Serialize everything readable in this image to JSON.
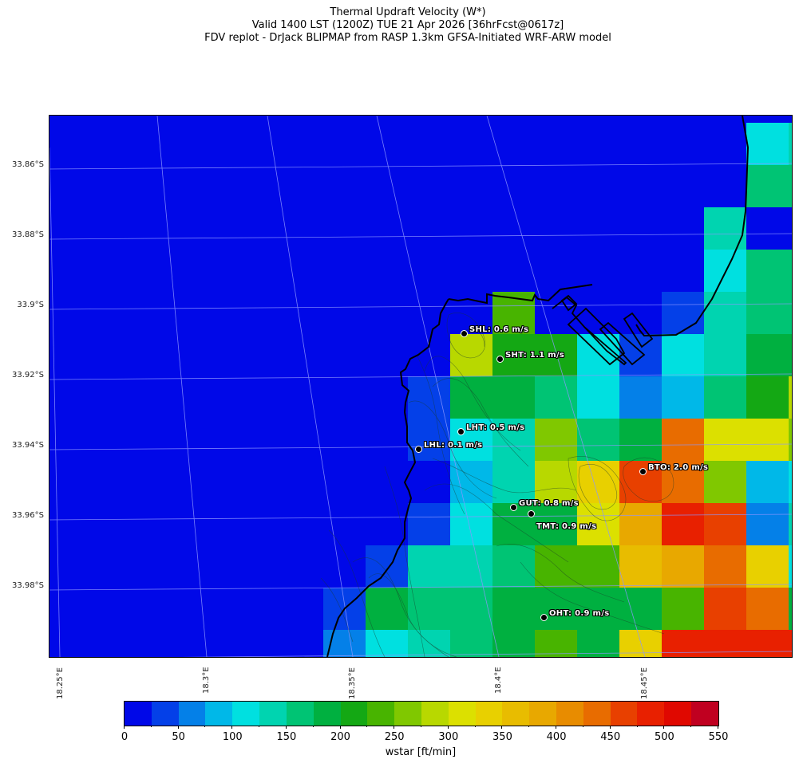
{
  "title": {
    "line1": "Thermal Updraft Velocity (W*)",
    "line2": "Valid 1400 LST (1200Z) TUE 21 Apr 2026 [36hrFcst@0617z]",
    "line3": "FDV replot - DrJack BLIPMAP from RASP 1.3km GFSA-Initiated WRF-ARW model"
  },
  "axes": {
    "lat_labels": [
      "33.86°S",
      "33.88°S",
      "33.9°S",
      "33.92°S",
      "33.94°S",
      "33.96°S",
      "33.98°S"
    ],
    "lon_labels": [
      "18.25°E",
      "18.3°E",
      "18.35°E",
      "18.4°E",
      "18.45°E"
    ]
  },
  "stations": [
    {
      "code": "SHL",
      "label": "SHL: 0.6 m/s",
      "value_ms": 0.6
    },
    {
      "code": "SHT",
      "label": "SHT: 1.1 m/s",
      "value_ms": 1.1
    },
    {
      "code": "LHT",
      "label": "LHT: 0.5 m/s",
      "value_ms": 0.5
    },
    {
      "code": "LHL",
      "label": "LHL: 0.1 m/s",
      "value_ms": 0.1
    },
    {
      "code": "BTO",
      "label": "BTO: 2.0 m/s",
      "value_ms": 2.0
    },
    {
      "code": "GUT",
      "label": "GUT: 0.8 m/s",
      "value_ms": 0.8
    },
    {
      "code": "TMT",
      "label": "TMT: 0.9 m/s",
      "value_ms": 0.9
    },
    {
      "code": "OHT",
      "label": "OHT: 0.9 m/s",
      "value_ms": 0.9
    }
  ],
  "colorbar": {
    "title": "wstar [ft/min]",
    "tick_labels": [
      "0",
      "50",
      "100",
      "150",
      "200",
      "250",
      "300",
      "350",
      "400",
      "450",
      "500",
      "550"
    ],
    "colors": [
      "#0008e8",
      "#0440e8",
      "#0480e8",
      "#00b8e8",
      "#00e0e0",
      "#00d4b0",
      "#00c474",
      "#00b040",
      "#14a814",
      "#48b400",
      "#80c800",
      "#b8d800",
      "#dce000",
      "#e8d000",
      "#e8bc00",
      "#e8a800",
      "#e88c00",
      "#e86c00",
      "#e84000",
      "#e82000",
      "#e00800",
      "#c00020"
    ]
  },
  "chart_data": {
    "type": "heatmap",
    "title": "Thermal Updraft Velocity (W*)",
    "subtitle": "Valid 1400 LST (1200Z) TUE 21 Apr 2026 [36hrFcst@0617z]",
    "xlabel": "Longitude",
    "ylabel": "Latitude",
    "x_ticks": [
      "18.25°E",
      "18.3°E",
      "18.35°E",
      "18.4°E",
      "18.45°E"
    ],
    "y_ticks": [
      "33.86°S",
      "33.88°S",
      "33.9°S",
      "33.92°S",
      "33.94°S",
      "33.96°S",
      "33.98°S"
    ],
    "colorbar_label": "wstar [ft/min]",
    "colorbar_range": [
      0,
      550
    ],
    "colorbar_step": 25,
    "grid_note": "Cell values = colorbar bin index (0..21, each bin 25 ft/min); columns left→right starting at x≈405px, rows top→bottom starting at y≈154px; cells left of listed ones are bin 0 (sea)",
    "grid_bins": [
      [
        0,
        0,
        0,
        0,
        0,
        0,
        0,
        0,
        0,
        0,
        4,
        5
      ],
      [
        0,
        0,
        0,
        0,
        0,
        0,
        0,
        0,
        0,
        0,
        6,
        6
      ],
      [
        0,
        0,
        0,
        0,
        0,
        0,
        0,
        0,
        0,
        5,
        0,
        0
      ],
      [
        0,
        0,
        0,
        0,
        0,
        0,
        0,
        0,
        0,
        4,
        6,
        6
      ],
      [
        0,
        0,
        0,
        0,
        9,
        0,
        0,
        0,
        1,
        5,
        6,
        6
      ],
      [
        0,
        0,
        0,
        11,
        8,
        8,
        4,
        1,
        4,
        5,
        7,
        7
      ],
      [
        0,
        0,
        1,
        7,
        7,
        6,
        4,
        2,
        3,
        6,
        8,
        11
      ],
      [
        0,
        0,
        1,
        4,
        5,
        10,
        6,
        7,
        17,
        12,
        12,
        10
      ],
      [
        0,
        0,
        0,
        3,
        5,
        11,
        13,
        18,
        17,
        10,
        3,
        4
      ],
      [
        0,
        0,
        1,
        4,
        7,
        7,
        12,
        15,
        19,
        18,
        2,
        5
      ],
      [
        0,
        1,
        5,
        5,
        6,
        9,
        9,
        14,
        15,
        17,
        13,
        4
      ],
      [
        1,
        7,
        6,
        6,
        7,
        7,
        7,
        7,
        9,
        18,
        17,
        7
      ],
      [
        2,
        4,
        5,
        6,
        7,
        9,
        7,
        13,
        19,
        19,
        19,
        19
      ]
    ],
    "stations": [
      {
        "code": "SHL",
        "w_ms": 0.6
      },
      {
        "code": "SHT",
        "w_ms": 1.1
      },
      {
        "code": "LHT",
        "w_ms": 0.5
      },
      {
        "code": "LHL",
        "w_ms": 0.1
      },
      {
        "code": "BTO",
        "w_ms": 2.0
      },
      {
        "code": "GUT",
        "w_ms": 0.8
      },
      {
        "code": "TMT",
        "w_ms": 0.9
      },
      {
        "code": "OHT",
        "w_ms": 0.9
      }
    ]
  }
}
